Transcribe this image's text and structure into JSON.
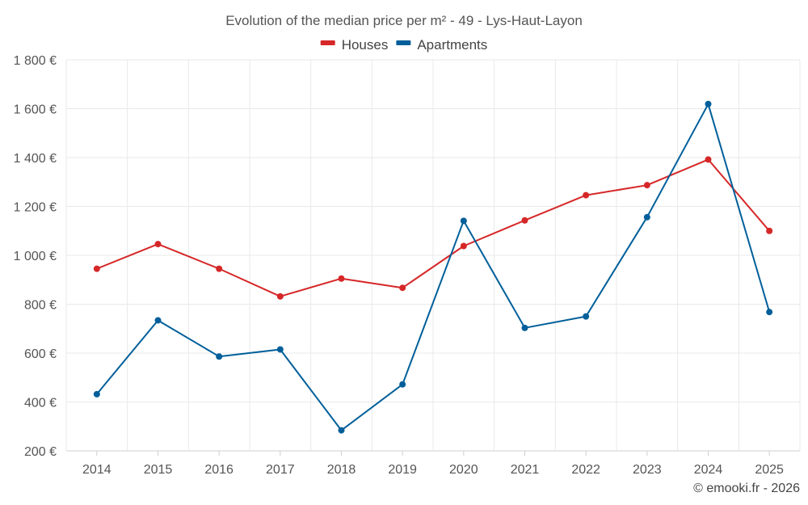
{
  "chart_data": {
    "type": "line",
    "title": "Evolution of the median price per m² - 49 - Lys-Haut-Layon",
    "categories": [
      "2014",
      "2015",
      "2016",
      "2017",
      "2018",
      "2019",
      "2020",
      "2021",
      "2022",
      "2023",
      "2024",
      "2025"
    ],
    "series": [
      {
        "name": "Houses",
        "color": "#d62728",
        "values": [
          945,
          1046,
          945,
          832,
          905,
          867,
          1038,
          1143,
          1246,
          1287,
          1392,
          1100
        ]
      },
      {
        "name": "Apartments",
        "color": "#005f9a",
        "values": [
          432,
          734,
          586,
          615,
          284,
          472,
          1141,
          703,
          750,
          1156,
          1619,
          768
        ]
      }
    ],
    "y_ticks": [
      {
        "value": 200,
        "label": "200 €"
      },
      {
        "value": 400,
        "label": "400 €"
      },
      {
        "value": 600,
        "label": "600 €"
      },
      {
        "value": 800,
        "label": "800 €"
      },
      {
        "value": 1000,
        "label": "1 000 €"
      },
      {
        "value": 1200,
        "label": "1 200 €"
      },
      {
        "value": 1400,
        "label": "1 400 €"
      },
      {
        "value": 1600,
        "label": "1 600 €"
      },
      {
        "value": 1800,
        "label": "1 800 €"
      }
    ],
    "ylim": [
      200,
      1800
    ],
    "xlabel": "",
    "ylabel": "",
    "grid": true,
    "legend_position": "top-center"
  },
  "copyright": "© emooki.fr - 2026"
}
